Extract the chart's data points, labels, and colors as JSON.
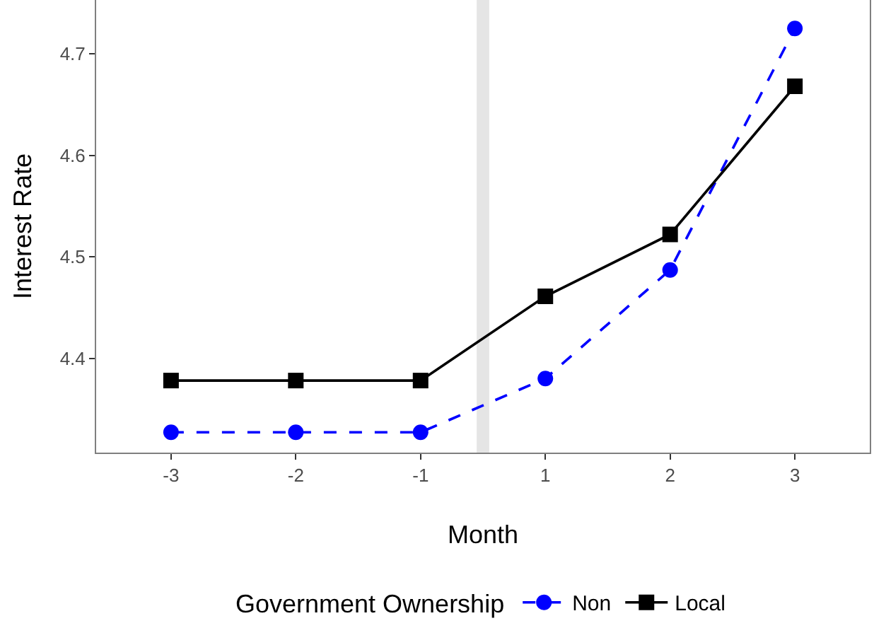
{
  "chart_data": {
    "type": "line",
    "xlabel": "Month",
    "ylabel": "Interest Rate",
    "legend_title": "Government Ownership",
    "legend": "bottom",
    "grid": false,
    "categories": [
      "-3",
      "-2",
      "-1",
      "1",
      "2",
      "3"
    ],
    "series": [
      {
        "name": "Non",
        "color": "#0000ff",
        "marker": "circle",
        "line_style": "dashed",
        "values": [
          4.327,
          4.327,
          4.327,
          4.38,
          4.487,
          4.725
        ]
      },
      {
        "name": "Local",
        "color": "#000000",
        "marker": "square",
        "line_style": "solid",
        "values": [
          4.378,
          4.378,
          4.378,
          4.461,
          4.522,
          4.668
        ]
      }
    ],
    "ylim": [
      4.307,
      4.753
    ],
    "yticks": [
      4.4,
      4.5,
      4.6,
      4.7
    ],
    "bands": [
      {
        "axis": "x",
        "from": "-1",
        "to": "1",
        "color": "#e5e5e5"
      }
    ]
  }
}
